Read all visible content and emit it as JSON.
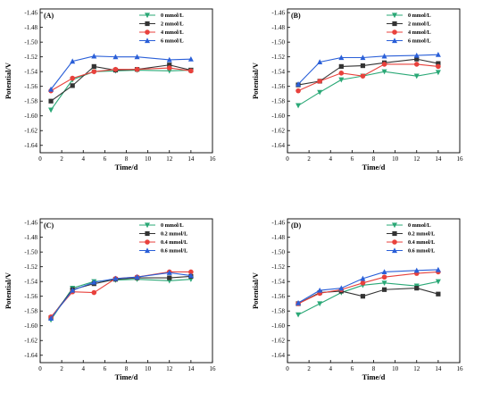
{
  "chart_data": [
    {
      "type": "line",
      "panel_label": "(A)",
      "xlabel": "Time/d",
      "ylabel": "Potential/V",
      "xlim": [
        0,
        16
      ],
      "ylim": [
        -1.65,
        -1.455
      ],
      "xticks": [
        0,
        2,
        4,
        6,
        8,
        10,
        12,
        14,
        16
      ],
      "yticks": [
        -1.46,
        -1.48,
        -1.5,
        -1.52,
        -1.54,
        -1.56,
        -1.58,
        -1.6,
        -1.62,
        -1.64
      ],
      "x": [
        1,
        3,
        5,
        7,
        9,
        12,
        14
      ],
      "legend_position": "top-right",
      "series": [
        {
          "name": "0 mmol/L",
          "color": "#2aa876",
          "marker": "triangle-down",
          "values": [
            -1.592,
            -1.551,
            -1.54,
            -1.539,
            -1.538,
            -1.539,
            -1.538
          ]
        },
        {
          "name": "2 mmol/L",
          "color": "#333333",
          "marker": "square",
          "values": [
            -1.58,
            -1.559,
            -1.533,
            -1.538,
            -1.537,
            -1.531,
            -1.538
          ]
        },
        {
          "name": "4 mmol/L",
          "color": "#e8413c",
          "marker": "circle",
          "values": [
            -1.566,
            -1.549,
            -1.54,
            -1.537,
            -1.537,
            -1.535,
            -1.539
          ]
        },
        {
          "name": "6 mmol/L",
          "color": "#2a5fd8",
          "marker": "triangle-up",
          "values": [
            -1.564,
            -1.526,
            -1.519,
            -1.52,
            -1.52,
            -1.524,
            -1.523
          ]
        }
      ]
    },
    {
      "type": "line",
      "panel_label": "(B)",
      "xlabel": "Time/d",
      "ylabel": "Potential/V",
      "xlim": [
        0,
        16
      ],
      "ylim": [
        -1.65,
        -1.455
      ],
      "xticks": [
        0,
        2,
        4,
        6,
        8,
        10,
        12,
        14,
        16
      ],
      "yticks": [
        -1.46,
        -1.48,
        -1.5,
        -1.52,
        -1.54,
        -1.56,
        -1.58,
        -1.6,
        -1.62,
        -1.64
      ],
      "x": [
        1,
        3,
        5,
        7,
        9,
        12,
        14
      ],
      "legend_position": "top-right",
      "series": [
        {
          "name": "0 mmol/L",
          "color": "#2aa876",
          "marker": "triangle-down",
          "values": [
            -1.586,
            -1.568,
            -1.551,
            -1.546,
            -1.54,
            -1.546,
            -1.541
          ]
        },
        {
          "name": "2 mmol/L",
          "color": "#333333",
          "marker": "square",
          "values": [
            -1.558,
            -1.553,
            -1.533,
            -1.532,
            -1.528,
            -1.523,
            -1.529
          ]
        },
        {
          "name": "4 mmol/L",
          "color": "#e8413c",
          "marker": "circle",
          "values": [
            -1.566,
            -1.553,
            -1.542,
            -1.546,
            -1.53,
            -1.53,
            -1.533
          ]
        },
        {
          "name": "6 mmol/L",
          "color": "#2a5fd8",
          "marker": "triangle-up",
          "values": [
            -1.557,
            -1.527,
            -1.521,
            -1.521,
            -1.519,
            -1.518,
            -1.517
          ]
        }
      ]
    },
    {
      "type": "line",
      "panel_label": "(C)",
      "xlabel": "Time/d",
      "ylabel": "Potential/V",
      "xlim": [
        0,
        16
      ],
      "ylim": [
        -1.65,
        -1.455
      ],
      "xticks": [
        0,
        2,
        4,
        6,
        8,
        10,
        12,
        14,
        16
      ],
      "yticks": [
        -1.46,
        -1.48,
        -1.5,
        -1.52,
        -1.54,
        -1.56,
        -1.58,
        -1.6,
        -1.62,
        -1.64
      ],
      "x": [
        1,
        3,
        5,
        7,
        9,
        12,
        14
      ],
      "legend_position": "top-right",
      "series": [
        {
          "name": "0 mmol/L",
          "color": "#2aa876",
          "marker": "triangle-down",
          "values": [
            -1.592,
            -1.549,
            -1.54,
            -1.538,
            -1.537,
            -1.539,
            -1.537
          ]
        },
        {
          "name": "0.2 mmol/L",
          "color": "#333333",
          "marker": "square",
          "values": [
            -1.589,
            -1.551,
            -1.543,
            -1.537,
            -1.535,
            -1.535,
            -1.533
          ]
        },
        {
          "name": "0.4 mmol/L",
          "color": "#e8413c",
          "marker": "circle",
          "values": [
            -1.588,
            -1.554,
            -1.555,
            -1.536,
            -1.534,
            -1.527,
            -1.527
          ]
        },
        {
          "name": "0.6 mmol/L",
          "color": "#2a5fd8",
          "marker": "triangle-up",
          "values": [
            -1.59,
            -1.552,
            -1.541,
            -1.536,
            -1.534,
            -1.528,
            -1.532
          ]
        }
      ]
    },
    {
      "type": "line",
      "panel_label": "(D)",
      "xlabel": "Time/d",
      "ylabel": "Potential/V",
      "xlim": [
        0,
        16
      ],
      "ylim": [
        -1.65,
        -1.455
      ],
      "xticks": [
        0,
        2,
        4,
        6,
        8,
        10,
        12,
        14,
        16
      ],
      "yticks": [
        -1.46,
        -1.48,
        -1.5,
        -1.52,
        -1.54,
        -1.56,
        -1.58,
        -1.6,
        -1.62,
        -1.64
      ],
      "x": [
        1,
        3,
        5,
        7,
        9,
        12,
        14
      ],
      "legend_position": "top-right",
      "series": [
        {
          "name": "0 mmol/L",
          "color": "#2aa876",
          "marker": "triangle-down",
          "values": [
            -1.585,
            -1.57,
            -1.555,
            -1.545,
            -1.542,
            -1.546,
            -1.54
          ]
        },
        {
          "name": "0.2 mmol/L",
          "color": "#333333",
          "marker": "square",
          "values": [
            -1.57,
            -1.555,
            -1.553,
            -1.56,
            -1.551,
            -1.549,
            -1.557
          ]
        },
        {
          "name": "0.4 mmol/L",
          "color": "#e8413c",
          "marker": "circle",
          "values": [
            -1.57,
            -1.556,
            -1.551,
            -1.542,
            -1.534,
            -1.529,
            -1.527
          ]
        },
        {
          "name": "0.6 mmol/L",
          "color": "#2a5fd8",
          "marker": "triangle-up",
          "values": [
            -1.569,
            -1.552,
            -1.549,
            -1.536,
            -1.527,
            -1.525,
            -1.524
          ]
        }
      ]
    }
  ]
}
